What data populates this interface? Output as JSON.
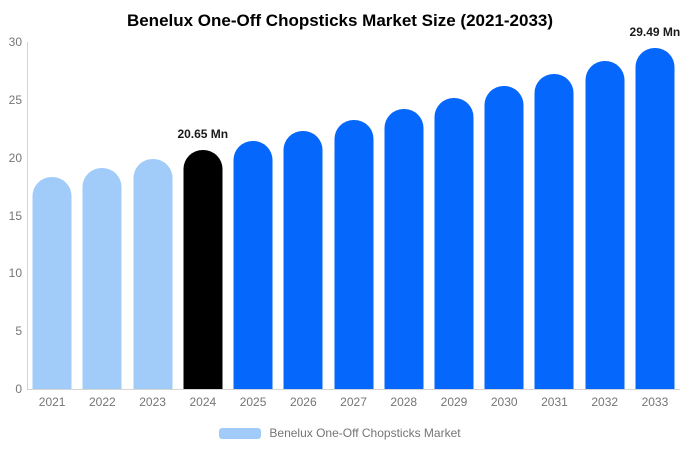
{
  "title": "Benelux One-Off Chopsticks Market Size (2021-2033)",
  "colors": {
    "light_blue": "#a1ccfa",
    "primary_blue": "#0667fc",
    "highlight_black": "#000000",
    "axis_line": "#d4d4d4",
    "tick_text": "#757575",
    "annotation_text": "#1a1a1a",
    "legend_text": "#757575",
    "title_text": "#000000"
  },
  "chart_data": {
    "type": "bar",
    "title": "Benelux One-Off Chopsticks Market Size (2021-2033)",
    "xlabel": "",
    "ylabel": "",
    "categories": [
      "2021",
      "2022",
      "2023",
      "2024",
      "2025",
      "2026",
      "2027",
      "2028",
      "2029",
      "2030",
      "2031",
      "2032",
      "2033"
    ],
    "values": [
      18.34,
      19.08,
      19.85,
      20.65,
      21.48,
      22.35,
      23.25,
      24.19,
      25.17,
      26.19,
      27.25,
      28.35,
      29.49
    ],
    "unit": "Mn",
    "bar_colors": [
      "#a1ccfa",
      "#a1ccfa",
      "#a1ccfa",
      "#000000",
      "#0667fc",
      "#0667fc",
      "#0667fc",
      "#0667fc",
      "#0667fc",
      "#0667fc",
      "#0667fc",
      "#0667fc",
      "#0667fc"
    ],
    "yticks": [
      0,
      5,
      10,
      15,
      20,
      25,
      30
    ],
    "ylim": [
      0,
      30
    ],
    "grid": false,
    "annotations": [
      {
        "category": "2024",
        "text": "20.65 Mn"
      },
      {
        "category": "2033",
        "text": "29.49 Mn"
      }
    ],
    "legend": {
      "label": "Benelux One-Off Chopsticks Market",
      "position": "bottom",
      "swatch_color": "#a1ccfa"
    }
  }
}
